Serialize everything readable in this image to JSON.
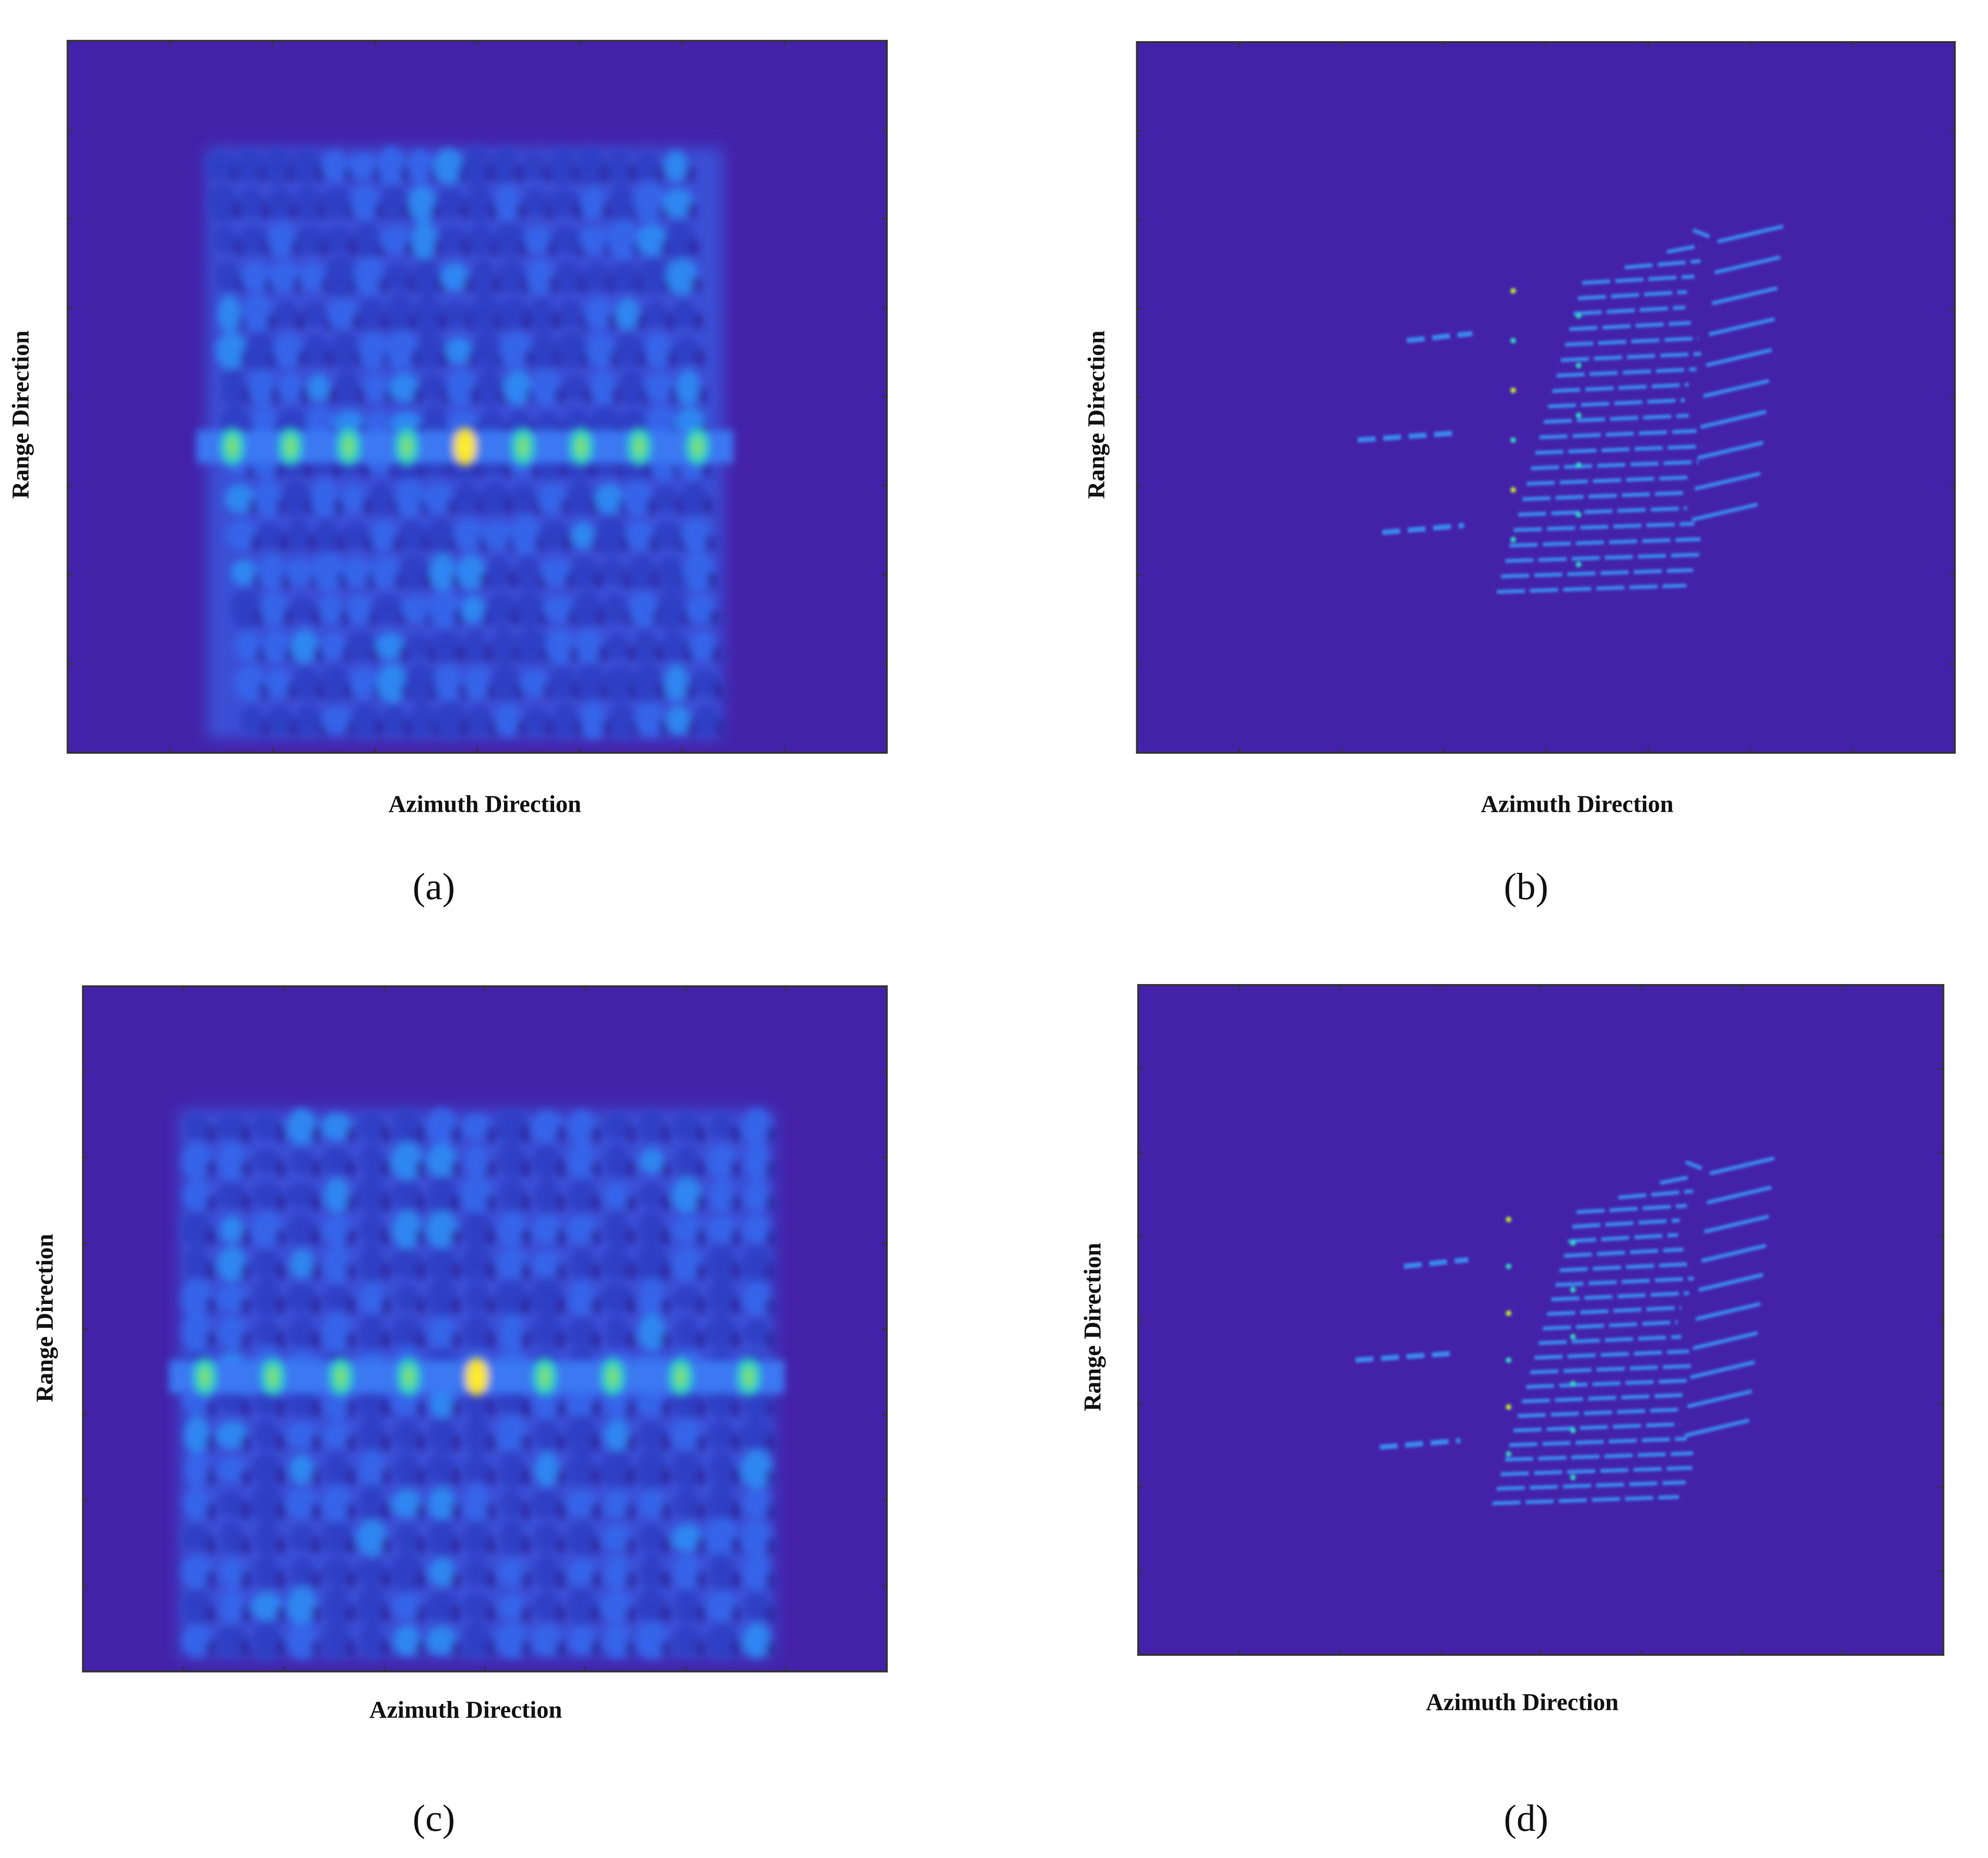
{
  "panels": [
    {
      "caption": "(a)",
      "x_label": "Azimuth Direction",
      "y_label": "Range Direction"
    },
    {
      "caption": "(b)",
      "x_label": "Azimuth Direction",
      "y_label": "Range Direction"
    },
    {
      "caption": "(c)",
      "x_label": "Azimuth Direction",
      "y_label": "Range Direction"
    },
    {
      "caption": "(d)",
      "x_label": "Azimuth Direction",
      "y_label": "Range Direction"
    }
  ]
}
